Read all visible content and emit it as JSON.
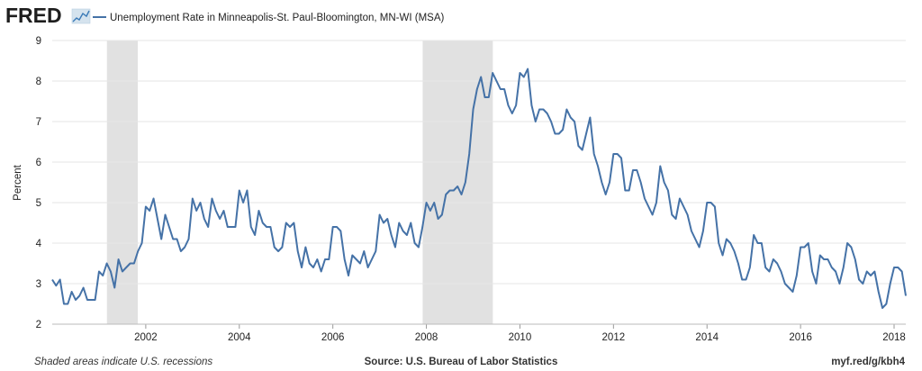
{
  "header": {
    "logo": "FRED",
    "title": "Unemployment Rate in Minneapolis-St. Paul-Bloomington, MN-WI (MSA)"
  },
  "footer": {
    "recession_note": "Shaded areas indicate U.S. recessions",
    "source": "Source: U.S. Bureau of Labor Statistics",
    "url": "myf.red/g/kbh4"
  },
  "colors": {
    "line": "#4572a7",
    "recession": "#e1e1e1",
    "grid": "#e6e6e6",
    "logo": "#1e1e1e"
  },
  "chart_data": {
    "type": "line",
    "ylabel": "Percent",
    "ylim": [
      2,
      9
    ],
    "yticks": [
      2,
      3,
      4,
      5,
      6,
      7,
      8,
      9
    ],
    "xlim": [
      2000.0,
      2018.25
    ],
    "xticks": [
      2002,
      2004,
      2006,
      2008,
      2010,
      2012,
      2014,
      2016,
      2018
    ],
    "grid": true,
    "recessions": [
      [
        2001.17,
        2001.83
      ],
      [
        2007.92,
        2009.42
      ]
    ],
    "series": [
      {
        "name": "Unemployment Rate in Minneapolis-St. Paul-Bloomington, MN-WI (MSA)",
        "start": "2000-01",
        "frequency": "monthly",
        "values": [
          3.1,
          2.95,
          3.1,
          2.5,
          2.5,
          2.8,
          2.6,
          2.7,
          2.9,
          2.6,
          2.6,
          2.6,
          3.3,
          3.2,
          3.5,
          3.3,
          2.9,
          3.6,
          3.3,
          3.4,
          3.5,
          3.5,
          3.8,
          4.0,
          4.9,
          4.8,
          5.1,
          4.6,
          4.1,
          4.7,
          4.4,
          4.1,
          4.1,
          3.8,
          3.9,
          4.1,
          5.1,
          4.8,
          5.0,
          4.6,
          4.4,
          5.1,
          4.8,
          4.6,
          4.8,
          4.4,
          4.4,
          4.4,
          5.3,
          5.0,
          5.3,
          4.4,
          4.2,
          4.8,
          4.5,
          4.4,
          4.4,
          3.9,
          3.8,
          3.9,
          4.5,
          4.4,
          4.5,
          3.8,
          3.4,
          3.9,
          3.5,
          3.4,
          3.6,
          3.3,
          3.6,
          3.6,
          4.4,
          4.4,
          4.3,
          3.6,
          3.2,
          3.7,
          3.6,
          3.5,
          3.8,
          3.4,
          3.6,
          3.8,
          4.7,
          4.5,
          4.6,
          4.2,
          3.9,
          4.5,
          4.3,
          4.2,
          4.5,
          4.0,
          3.9,
          4.4,
          5.0,
          4.8,
          5.0,
          4.6,
          4.7,
          5.2,
          5.3,
          5.3,
          5.4,
          5.2,
          5.5,
          6.2,
          7.3,
          7.8,
          8.1,
          7.6,
          7.6,
          8.2,
          8.0,
          7.8,
          7.8,
          7.4,
          7.2,
          7.4,
          8.2,
          8.1,
          8.3,
          7.4,
          7.0,
          7.3,
          7.3,
          7.2,
          7.0,
          6.7,
          6.7,
          6.8,
          7.3,
          7.1,
          7.0,
          6.4,
          6.3,
          6.7,
          7.1,
          6.2,
          5.9,
          5.5,
          5.2,
          5.5,
          6.2,
          6.2,
          6.1,
          5.3,
          5.3,
          5.8,
          5.8,
          5.5,
          5.1,
          4.9,
          4.7,
          5.0,
          5.9,
          5.5,
          5.3,
          4.7,
          4.6,
          5.1,
          4.9,
          4.7,
          4.3,
          4.1,
          3.9,
          4.3,
          5.0,
          5.0,
          4.9,
          4.0,
          3.7,
          4.1,
          4.0,
          3.8,
          3.5,
          3.1,
          3.1,
          3.4,
          4.2,
          4.0,
          4.0,
          3.4,
          3.3,
          3.6,
          3.5,
          3.3,
          3.0,
          2.9,
          2.8,
          3.2,
          3.9,
          3.9,
          4.0,
          3.3,
          3.0,
          3.7,
          3.6,
          3.6,
          3.4,
          3.3,
          3.0,
          3.4,
          4.0,
          3.9,
          3.6,
          3.1,
          3.0,
          3.3,
          3.2,
          3.3,
          2.8,
          2.4,
          2.5,
          3.0,
          3.4,
          3.4,
          3.3,
          2.7
        ]
      }
    ]
  }
}
